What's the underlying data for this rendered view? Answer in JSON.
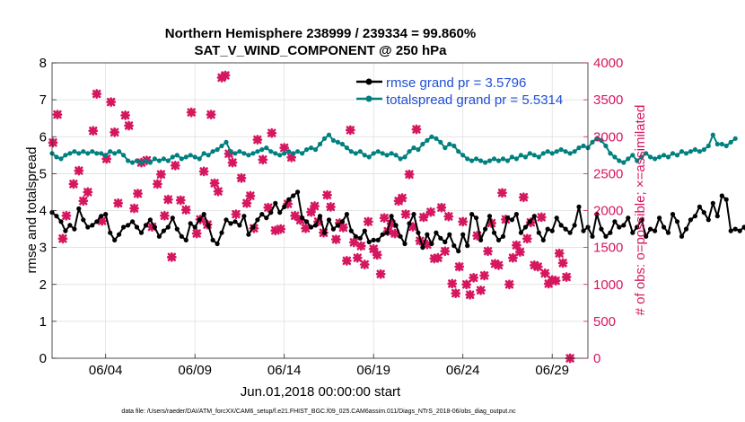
{
  "chart_data": {
    "type": "line",
    "title_line1": "Northern Hemisphere 238999 / 239334 = 99.860%",
    "title_line2": "SAT_V_WIND_COMPONENT @ 250 hPa",
    "xlabel": "Jun.01,2018 00:00:00 start",
    "ylabel_left": "rmse and totalspread",
    "ylabel_right": "# of obs: o=possible; ×=assimilated",
    "footer": "data file: /Users/raeder/DAI/ATM_forcXX/CAM6_setup/f.e21.FHIST_BGC.f09_025.CAM6assim.011/Diags_NTrS_2018-06/obs_diag_output.nc",
    "xlim": [
      1,
      31
    ],
    "ylim_left": [
      0,
      8
    ],
    "ylim_right": [
      0,
      4000
    ],
    "x_ticks": [
      {
        "day": 4,
        "label": "06/04"
      },
      {
        "day": 9,
        "label": "06/09"
      },
      {
        "day": 14,
        "label": "06/14"
      },
      {
        "day": 19,
        "label": "06/19"
      },
      {
        "day": 24,
        "label": "06/24"
      },
      {
        "day": 29,
        "label": "06/29"
      }
    ],
    "y_left_ticks": [
      "0",
      "1",
      "2",
      "3",
      "4",
      "5",
      "6",
      "7",
      "8"
    ],
    "y_right_ticks": [
      "0",
      "500",
      "1000",
      "1500",
      "2000",
      "2500",
      "3000",
      "3500",
      "4000"
    ],
    "colors": {
      "rmse": "#000000",
      "spread": "#00807f",
      "obs": "#d6165f",
      "right_axis": "#d6165f"
    },
    "series": [
      {
        "name": "rmse",
        "legend": "rmse grand pr = 3.5796",
        "x_start": 1.0,
        "dx": 0.25,
        "values": [
          3.95,
          3.85,
          3.7,
          3.45,
          3.6,
          3.5,
          4.05,
          3.75,
          3.55,
          3.6,
          3.7,
          3.85,
          3.9,
          3.4,
          3.2,
          3.35,
          3.55,
          3.6,
          3.7,
          3.55,
          3.4,
          3.6,
          3.75,
          3.55,
          3.3,
          3.45,
          3.55,
          3.8,
          3.5,
          3.3,
          3.2,
          3.65,
          3.55,
          3.75,
          3.9,
          3.6,
          3.2,
          3.1,
          3.4,
          3.75,
          3.65,
          3.7,
          3.6,
          3.85,
          3.35,
          3.55,
          3.75,
          3.9,
          3.8,
          3.95,
          4.2,
          3.95,
          4.1,
          4.3,
          4.4,
          4.5,
          3.8,
          3.7,
          3.55,
          3.6,
          3.85,
          3.4,
          3.75,
          3.5,
          3.6,
          3.7,
          3.9,
          3.45,
          3.3,
          3.25,
          3.45,
          3.15,
          3.2,
          3.2,
          3.35,
          3.4,
          3.85,
          3.6,
          3.3,
          3.1,
          3.65,
          3.9,
          3.4,
          3.0,
          3.35,
          3.1,
          3.4,
          3.25,
          3.15,
          3.35,
          3.05,
          2.9,
          3.35,
          3.05,
          3.9,
          3.8,
          3.2,
          3.5,
          3.85,
          3.4,
          3.2,
          3.3,
          3.8,
          3.75,
          3.9,
          3.4,
          3.55,
          3.7,
          3.85,
          3.4,
          3.2,
          3.5,
          3.45,
          3.8,
          3.6,
          3.5,
          3.4,
          3.6,
          4.1,
          3.45,
          3.55,
          3.3,
          3.9,
          3.5,
          3.3,
          3.4,
          3.7,
          3.55,
          3.6,
          3.8,
          3.4,
          3.55,
          3.75,
          3.3,
          3.5,
          3.45,
          3.8,
          3.55,
          3.4,
          3.9,
          3.7,
          3.3,
          3.5,
          3.75,
          3.85,
          4.1,
          3.95,
          3.75,
          4.2,
          3.85,
          4.4,
          4.3,
          3.45,
          3.5,
          3.45,
          3.55,
          3.3,
          3.2,
          3.4
        ]
      },
      {
        "name": "totalspread",
        "legend": "totalspread grand pr = 5.5314",
        "x_start": 1.0,
        "dx": 0.25,
        "values": [
          5.55,
          5.45,
          5.4,
          5.5,
          5.55,
          5.6,
          5.55,
          5.6,
          5.55,
          5.6,
          5.55,
          5.55,
          5.5,
          5.6,
          5.55,
          5.6,
          5.5,
          5.35,
          5.3,
          5.35,
          5.3,
          5.35,
          5.3,
          5.4,
          5.35,
          5.4,
          5.35,
          5.45,
          5.5,
          5.4,
          5.45,
          5.5,
          5.45,
          5.4,
          5.55,
          5.5,
          5.6,
          5.65,
          5.75,
          5.85,
          5.6,
          5.55,
          5.6,
          5.55,
          5.5,
          5.55,
          5.6,
          5.65,
          5.7,
          5.6,
          5.55,
          5.5,
          5.55,
          5.6,
          5.55,
          5.6,
          5.55,
          5.65,
          5.7,
          5.65,
          5.8,
          5.95,
          6.05,
          5.9,
          5.85,
          5.8,
          5.7,
          5.6,
          5.55,
          5.6,
          5.5,
          5.45,
          5.55,
          5.6,
          5.55,
          5.5,
          5.55,
          5.5,
          5.4,
          5.45,
          5.6,
          5.7,
          5.65,
          5.8,
          5.9,
          6.0,
          5.95,
          5.85,
          5.7,
          5.8,
          5.75,
          5.6,
          5.5,
          5.4,
          5.35,
          5.4,
          5.35,
          5.3,
          5.35,
          5.4,
          5.35,
          5.4,
          5.35,
          5.45,
          5.4,
          5.5,
          5.45,
          5.55,
          5.5,
          5.45,
          5.55,
          5.6,
          5.55,
          5.6,
          5.65,
          5.6,
          5.55,
          5.6,
          5.7,
          5.75,
          5.7,
          5.85,
          5.95,
          5.9,
          5.75,
          5.55,
          5.45,
          5.35,
          5.3,
          5.4,
          5.5,
          5.35,
          5.45,
          5.55,
          5.45,
          5.4,
          5.45,
          5.5,
          5.45,
          5.55,
          5.5,
          5.6,
          5.55,
          5.6,
          5.65,
          5.6,
          5.65,
          5.75,
          6.05,
          5.8,
          5.8,
          5.75,
          5.85,
          5.95
        ]
      },
      {
        "name": "obs",
        "legend": "",
        "points": [
          [
            1.05,
            2920
          ],
          [
            1.3,
            3300
          ],
          [
            1.6,
            1620
          ],
          [
            1.8,
            1930
          ],
          [
            2.2,
            2360
          ],
          [
            2.5,
            2540
          ],
          [
            2.75,
            2130
          ],
          [
            3.0,
            2250
          ],
          [
            3.3,
            3080
          ],
          [
            3.5,
            3580
          ],
          [
            3.8,
            1860
          ],
          [
            4.05,
            2700
          ],
          [
            4.3,
            3470
          ],
          [
            4.5,
            3060
          ],
          [
            4.7,
            2100
          ],
          [
            5.1,
            3290
          ],
          [
            5.3,
            3150
          ],
          [
            5.6,
            2030
          ],
          [
            5.8,
            2230
          ],
          [
            6.0,
            2650
          ],
          [
            6.3,
            2680
          ],
          [
            6.6,
            1780
          ],
          [
            6.9,
            2360
          ],
          [
            7.1,
            2490
          ],
          [
            7.3,
            1930
          ],
          [
            7.5,
            2150
          ],
          [
            7.7,
            1370
          ],
          [
            7.9,
            2610
          ],
          [
            8.2,
            2140
          ],
          [
            8.5,
            2010
          ],
          [
            8.8,
            3330
          ],
          [
            9.1,
            1690
          ],
          [
            9.3,
            1880
          ],
          [
            9.5,
            2530
          ],
          [
            9.7,
            1810
          ],
          [
            9.9,
            3300
          ],
          [
            10.1,
            2370
          ],
          [
            10.3,
            2260
          ],
          [
            10.5,
            3800
          ],
          [
            10.7,
            3830
          ],
          [
            10.9,
            2770
          ],
          [
            11.1,
            2650
          ],
          [
            11.3,
            1950
          ],
          [
            11.6,
            2440
          ],
          [
            11.9,
            2100
          ],
          [
            12.1,
            2200
          ],
          [
            12.3,
            1760
          ],
          [
            12.5,
            2960
          ],
          [
            12.8,
            2690
          ],
          [
            13.1,
            2040
          ],
          [
            13.3,
            3050
          ],
          [
            13.5,
            1730
          ],
          [
            13.8,
            1750
          ],
          [
            14.0,
            2850
          ],
          [
            14.2,
            2090
          ],
          [
            14.4,
            2720
          ],
          [
            14.6,
            1930
          ],
          [
            14.9,
            1870
          ],
          [
            15.2,
            1760
          ],
          [
            15.5,
            1980
          ],
          [
            15.7,
            2060
          ],
          [
            15.9,
            1850
          ],
          [
            16.2,
            1700
          ],
          [
            16.4,
            2210
          ],
          [
            16.6,
            2050
          ],
          [
            16.9,
            1610
          ],
          [
            17.1,
            1830
          ],
          [
            17.3,
            1770
          ],
          [
            17.5,
            1320
          ],
          [
            17.7,
            3090
          ],
          [
            17.9,
            1570
          ],
          [
            18.1,
            1360
          ],
          [
            18.3,
            1520
          ],
          [
            18.5,
            1270
          ],
          [
            18.7,
            1850
          ],
          [
            19.0,
            1480
          ],
          [
            19.2,
            1400
          ],
          [
            19.4,
            1140
          ],
          [
            19.6,
            1900
          ],
          [
            19.8,
            1720
          ],
          [
            20.0,
            1820
          ],
          [
            20.2,
            1690
          ],
          [
            20.4,
            2130
          ],
          [
            20.6,
            2170
          ],
          [
            20.8,
            1950
          ],
          [
            21.0,
            2490
          ],
          [
            21.2,
            1780
          ],
          [
            21.4,
            3100
          ],
          [
            21.6,
            1590
          ],
          [
            21.8,
            1910
          ],
          [
            22.0,
            1540
          ],
          [
            22.2,
            1980
          ],
          [
            22.4,
            1350
          ],
          [
            22.6,
            1360
          ],
          [
            22.8,
            2040
          ],
          [
            23.0,
            1450
          ],
          [
            23.2,
            1920
          ],
          [
            23.4,
            1010
          ],
          [
            23.6,
            880
          ],
          [
            23.8,
            1240
          ],
          [
            24.0,
            1850
          ],
          [
            24.2,
            1000
          ],
          [
            24.4,
            860
          ],
          [
            24.6,
            1090
          ],
          [
            24.8,
            1660
          ],
          [
            25.0,
            920
          ],
          [
            25.2,
            1120
          ],
          [
            25.4,
            1450
          ],
          [
            25.6,
            1830
          ],
          [
            25.8,
            1280
          ],
          [
            26.0,
            1260
          ],
          [
            26.2,
            2240
          ],
          [
            26.4,
            1880
          ],
          [
            26.6,
            1000
          ],
          [
            26.8,
            1360
          ],
          [
            27.0,
            1530
          ],
          [
            27.2,
            1440
          ],
          [
            27.4,
            2180
          ],
          [
            27.6,
            1620
          ],
          [
            27.8,
            1840
          ],
          [
            28.0,
            1260
          ],
          [
            28.2,
            1240
          ],
          [
            28.4,
            1910
          ],
          [
            28.6,
            1150
          ],
          [
            28.8,
            1010
          ],
          [
            29.0,
            1060
          ],
          [
            29.2,
            1050
          ],
          [
            29.4,
            1420
          ],
          [
            29.6,
            1290
          ],
          [
            29.8,
            1100
          ],
          [
            30.0,
            0
          ]
        ]
      }
    ]
  }
}
